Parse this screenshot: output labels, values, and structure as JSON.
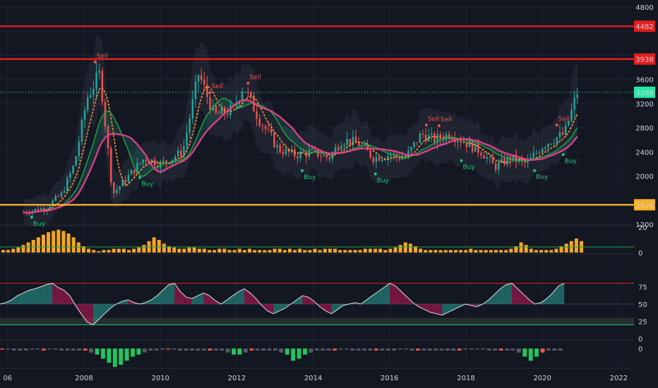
{
  "colors": {
    "background": "#131722",
    "grid": "#1f2433",
    "up": "#26a69a",
    "down": "#ef5350",
    "resistance": "#e21e1e",
    "support": "#f5b12a",
    "last_price": "#26e6a6",
    "ma_orange": "#ff9933",
    "ma_pink": "#e83e8c",
    "ma_green": "#1fa64a",
    "volume": "#f5a623"
  },
  "chart_data": [
    {
      "type": "candlestick",
      "panel": "price",
      "x": [
        "2006-06",
        "2007-01",
        "2007-06",
        "2007-10",
        "2008-02",
        "2008-06",
        "2008-10",
        "2009-03",
        "2009-08",
        "2010-01",
        "2010-08",
        "2011-01",
        "2011-06",
        "2011-12",
        "2012-03",
        "2012-08",
        "2013-02",
        "2013-07",
        "2014-01",
        "2014-06",
        "2014-10",
        "2015-03",
        "2015-08",
        "2016-01",
        "2016-06",
        "2016-11",
        "2017-03",
        "2017-08",
        "2018-01",
        "2018-06",
        "2018-10",
        "2019-03",
        "2019-08",
        "2020-01",
        "2020-04",
        "2020-08",
        "2020-12"
      ],
      "close": [
        1400,
        1480,
        1700,
        2200,
        3300,
        3700,
        1700,
        2000,
        2300,
        2200,
        2400,
        3700,
        3000,
        3100,
        3500,
        2950,
        2450,
        2350,
        2400,
        2300,
        2600,
        2550,
        2300,
        2350,
        2300,
        2700,
        2600,
        2700,
        2550,
        2400,
        2150,
        2300,
        2200,
        2500,
        2600,
        2700,
        3388
      ],
      "yrange": [
        1200,
        4800
      ],
      "y_ticks": [
        1200,
        1600,
        2000,
        2400,
        2800,
        3200,
        3600,
        4000,
        4400,
        4800
      ],
      "x_tick_labels": [
        "06",
        "2008",
        "2010",
        "2012",
        "2014",
        "2016",
        "2018",
        "2020",
        "2022"
      ],
      "horizontal_levels": [
        {
          "value": 4482,
          "label": "4482",
          "style": "resistance"
        },
        {
          "value": 3938,
          "label": "3938",
          "style": "resistance"
        },
        {
          "value": 3388,
          "label": "3388",
          "style": "last_price"
        },
        {
          "value": 1524,
          "label": "1524",
          "style": "support"
        }
      ],
      "signals": [
        {
          "x": "2006-09",
          "label": "Buy",
          "kind": "buy"
        },
        {
          "x": "2008-05",
          "label": "Sell",
          "kind": "sell"
        },
        {
          "x": "2009-07",
          "label": "Buy",
          "kind": "buy"
        },
        {
          "x": "2011-05",
          "label": "Sell",
          "kind": "sell"
        },
        {
          "x": "2012-05",
          "label": "Sell",
          "kind": "sell"
        },
        {
          "x": "2013-10",
          "label": "Buy",
          "kind": "buy"
        },
        {
          "x": "2015-09",
          "label": "Buy",
          "kind": "buy"
        },
        {
          "x": "2017-01",
          "label": "Sell",
          "kind": "sell"
        },
        {
          "x": "2017-05",
          "label": "Sell",
          "kind": "sell"
        },
        {
          "x": "2017-12",
          "label": "Buy",
          "kind": "buy"
        },
        {
          "x": "2019-11",
          "label": "Buy",
          "kind": "buy"
        },
        {
          "x": "2020-06",
          "label": "Sell",
          "kind": "sell"
        },
        {
          "x": "2020-08",
          "label": "Buy",
          "kind": "buy"
        }
      ]
    },
    {
      "type": "bar",
      "panel": "volume",
      "yrange": [
        0,
        20
      ],
      "y_ticks": [
        0,
        20
      ],
      "values": [
        2,
        2,
        3,
        4,
        6,
        8,
        10,
        12,
        14,
        16,
        17,
        18,
        17,
        15,
        12,
        8,
        5,
        3,
        2,
        1,
        2,
        2,
        3,
        3,
        3,
        2,
        3,
        4,
        6,
        9,
        12,
        10,
        7,
        5,
        4,
        3,
        3,
        4,
        4,
        3,
        3,
        2,
        2,
        3,
        3,
        2,
        2,
        3,
        2,
        3,
        2,
        2,
        2,
        2,
        3,
        3,
        2,
        3,
        2,
        3,
        2,
        2,
        3,
        2,
        3,
        3,
        3,
        2,
        2,
        2,
        2,
        2,
        3,
        3,
        3,
        3,
        2,
        3,
        4,
        6,
        8,
        7,
        5,
        3,
        2,
        2,
        2,
        2,
        2,
        2,
        2,
        2,
        2,
        3,
        2,
        2,
        2,
        2,
        2,
        2,
        2,
        3,
        5,
        8,
        6,
        3,
        2,
        2,
        2,
        2,
        3,
        5,
        7,
        9,
        11,
        9
      ]
    },
    {
      "type": "line",
      "panel": "oscillator",
      "yrange": [
        0,
        100
      ],
      "y_ticks": [
        0,
        25,
        50,
        75
      ],
      "levels": [
        80,
        50,
        20
      ],
      "values": [
        50,
        52,
        56,
        62,
        66,
        70,
        72,
        75,
        78,
        80,
        74,
        70,
        62,
        48,
        35,
        24,
        20,
        28,
        36,
        44,
        50,
        54,
        56,
        52,
        50,
        52,
        56,
        62,
        70,
        78,
        80,
        68,
        60,
        58,
        62,
        66,
        62,
        55,
        50,
        56,
        62,
        68,
        72,
        66,
        58,
        48,
        40,
        36,
        40,
        44,
        50,
        56,
        62,
        60,
        54,
        46,
        40,
        36,
        42,
        48,
        50,
        52,
        50,
        56,
        62,
        68,
        74,
        80,
        76,
        68,
        60,
        52,
        46,
        42,
        38,
        36,
        34,
        38,
        42,
        46,
        50,
        48,
        46,
        50,
        56,
        64,
        72,
        78,
        80,
        72,
        64,
        56,
        50,
        52,
        58,
        66,
        76,
        80
      ]
    },
    {
      "type": "bar",
      "panel": "histogram",
      "values": [
        0,
        0,
        -1,
        -1,
        -1,
        0,
        0,
        -1,
        0,
        0,
        -1,
        -1,
        -1,
        -1,
        -1,
        -2,
        -3,
        -5,
        -7,
        -9,
        -8,
        -6,
        -4,
        -3,
        -2,
        -1,
        -1,
        0,
        0,
        0,
        -1,
        -1,
        -1,
        -1,
        -1,
        -1,
        -1,
        -1,
        -2,
        -3,
        -3,
        -2,
        -1,
        -1,
        -1,
        -1,
        -1,
        -2,
        -3,
        -6,
        -5,
        -3,
        -2,
        -1,
        -1,
        -1,
        -1,
        0,
        0,
        -1,
        -1,
        -1,
        -1,
        -1,
        -1,
        -1,
        -1,
        0,
        0,
        -1,
        -1,
        -1,
        -1,
        -1,
        -1,
        -1,
        -1,
        -1,
        0,
        0,
        0,
        0,
        -1,
        -1,
        -1,
        -1,
        -1,
        -2,
        -4,
        -6,
        -4,
        -2,
        -1,
        -1,
        -1
      ]
    }
  ]
}
